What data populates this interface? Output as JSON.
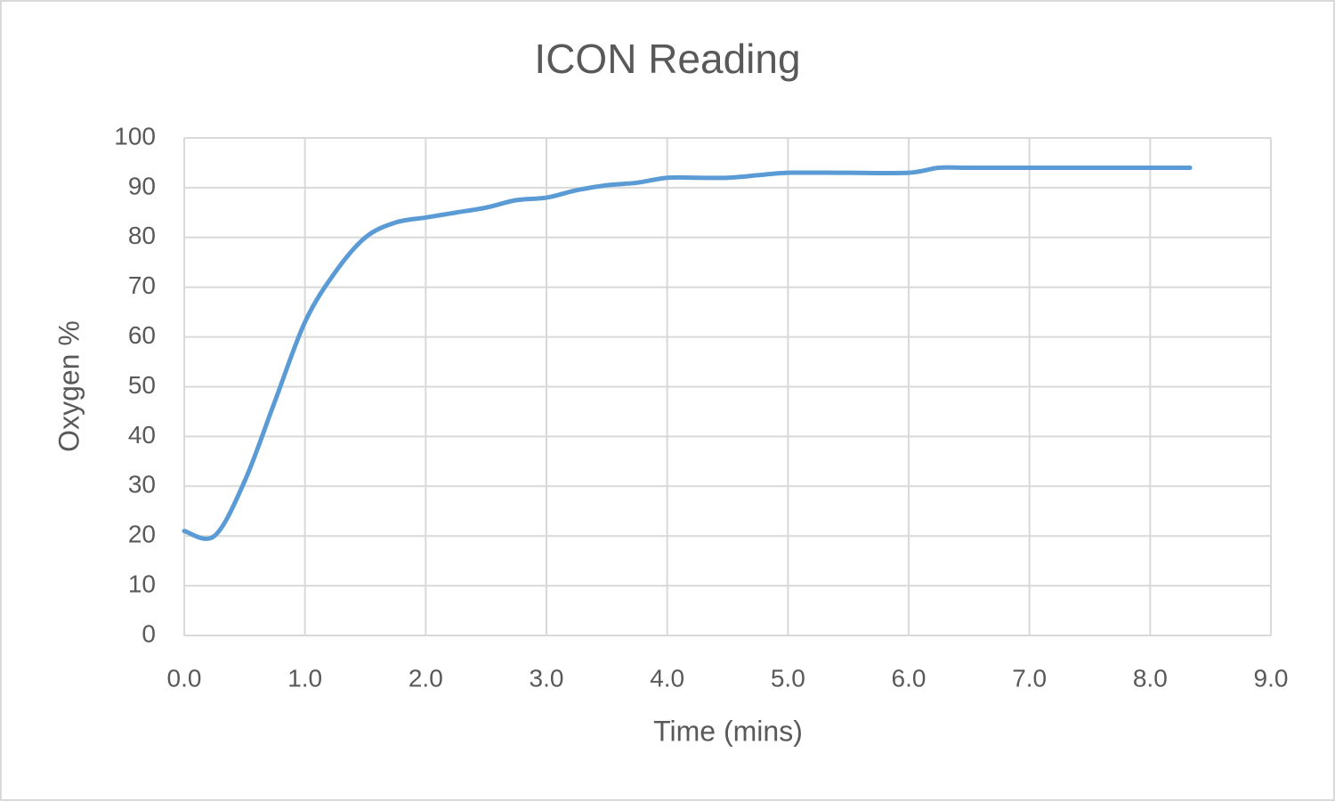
{
  "chart_data": {
    "type": "line",
    "title": "ICON Reading",
    "x_label": "Time (mins)",
    "y_label": "Oxygen %",
    "x": [
      0,
      0.25,
      0.5,
      0.75,
      1.0,
      1.25,
      1.5,
      1.75,
      2.0,
      2.25,
      2.5,
      2.75,
      3.0,
      3.25,
      3.5,
      3.75,
      4.0,
      4.25,
      4.5,
      4.75,
      5.0,
      5.5,
      6.0,
      6.25,
      6.5,
      7.0,
      7.5,
      8.0,
      8.33
    ],
    "series": [
      {
        "name": "Oxygen %",
        "color": "#5b9bd5",
        "values": [
          21,
          20,
          31,
          47,
          63,
          73,
          80,
          83,
          84,
          85,
          86,
          87.5,
          88,
          89.5,
          90.5,
          91,
          92,
          92,
          92,
          92.5,
          93,
          93,
          93,
          94,
          94,
          94,
          94,
          94,
          94
        ]
      }
    ],
    "xlim": [
      0,
      9
    ],
    "ylim": [
      0,
      100
    ],
    "xticks": [
      {
        "value": 0,
        "label": "0.0"
      },
      {
        "value": 1,
        "label": "1.0"
      },
      {
        "value": 2,
        "label": "2.0"
      },
      {
        "value": 3,
        "label": "3.0"
      },
      {
        "value": 4,
        "label": "4.0"
      },
      {
        "value": 5,
        "label": "5.0"
      },
      {
        "value": 6,
        "label": "6.0"
      },
      {
        "value": 7,
        "label": "7.0"
      },
      {
        "value": 8,
        "label": "8.0"
      },
      {
        "value": 9,
        "label": "9.0"
      }
    ],
    "yticks": [
      0,
      10,
      20,
      30,
      40,
      50,
      60,
      70,
      80,
      90,
      100
    ],
    "grid": true
  }
}
